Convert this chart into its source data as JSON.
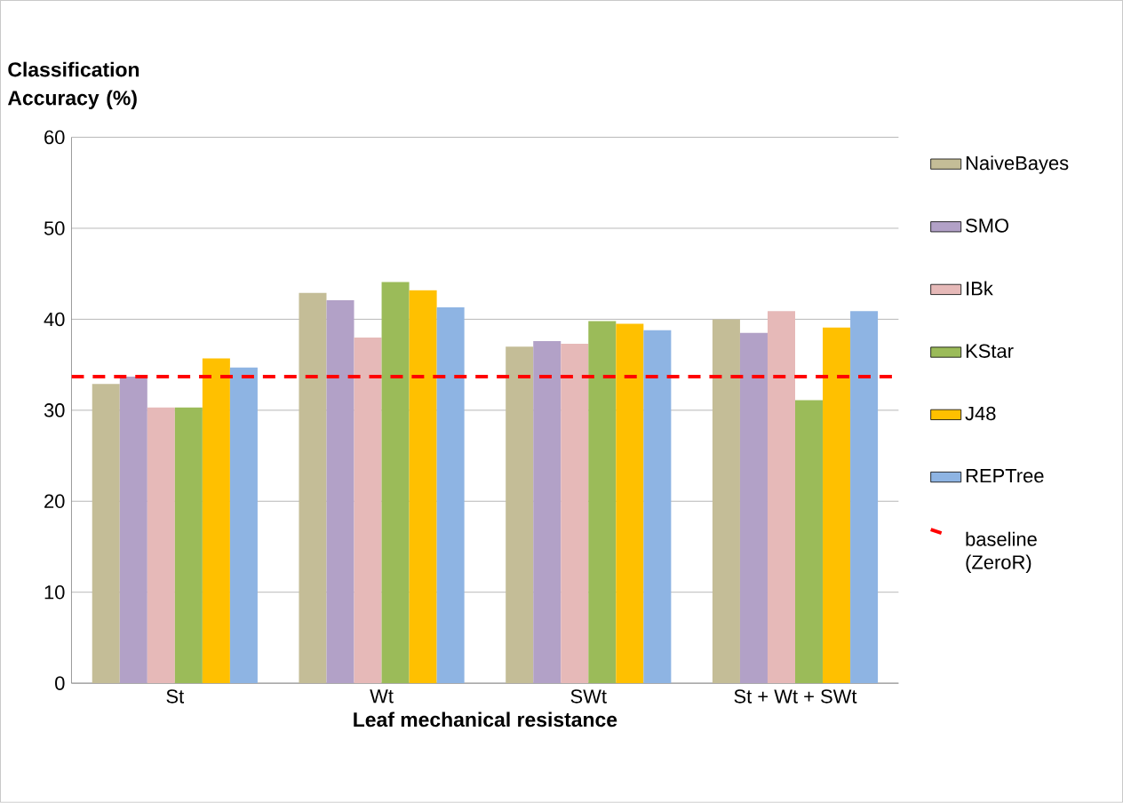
{
  "chart_data": {
    "type": "bar",
    "ylabel": "Classification Accuracy (%)",
    "xlabel": "Leaf mechanical resistance",
    "categories": [
      "St",
      "Wt",
      "SWt",
      "St + Wt + SWt"
    ],
    "series": [
      {
        "name": "NaiveBayes",
        "color": "#c4bd97",
        "values": [
          32.9,
          42.9,
          37.0,
          40.0
        ]
      },
      {
        "name": "SMO",
        "color": "#b2a1c7",
        "values": [
          33.7,
          42.1,
          37.6,
          38.5
        ]
      },
      {
        "name": "IBk",
        "color": "#e6b9b8",
        "values": [
          30.3,
          38.0,
          37.3,
          40.9
        ]
      },
      {
        "name": "KStar",
        "color": "#9bbb59",
        "values": [
          30.3,
          44.1,
          39.8,
          31.1
        ]
      },
      {
        "name": "J48",
        "color": "#ffc000",
        "values": [
          35.7,
          43.2,
          39.5,
          39.1
        ]
      },
      {
        "name": "REPTree",
        "color": "#8eb4e3",
        "values": [
          34.7,
          41.3,
          38.8,
          40.9
        ]
      }
    ],
    "ref_lines": [
      {
        "axis": "y",
        "value": 33.7,
        "label": "baseline (ZeroR)",
        "color": "#ff0000",
        "line_style": "dashed"
      }
    ],
    "ylim": [
      0,
      60
    ],
    "yticks": [
      0,
      10,
      20,
      30,
      40,
      50,
      60
    ],
    "grid": "y",
    "legend": "right"
  }
}
